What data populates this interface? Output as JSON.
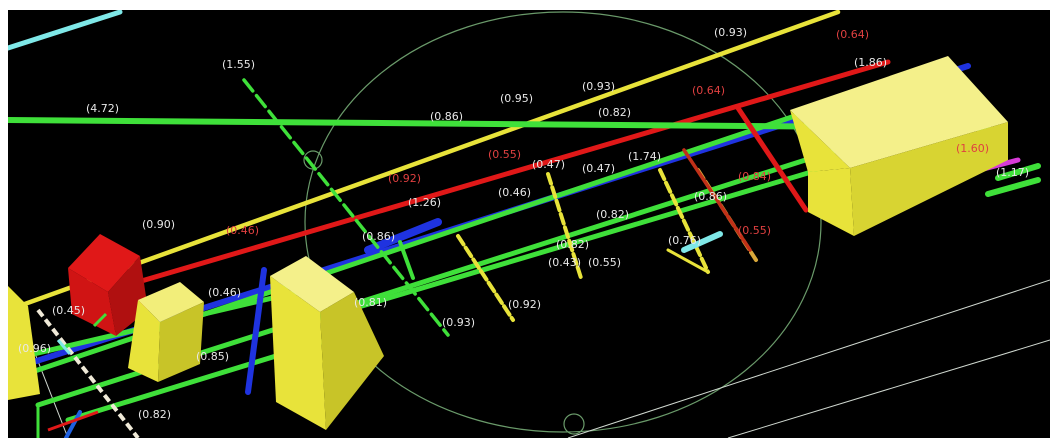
{
  "colors": {
    "background": "#000000",
    "frame": "#ffffff",
    "green": "#3fe03a",
    "yellow": "#e8e33a",
    "red": "#e01818",
    "blue": "#1f33e0",
    "cyan": "#7fe8e8",
    "magenta": "#d83ad8",
    "grid": "#cfd8cf"
  },
  "labels": {
    "l1": "(4.72)",
    "l2": "(1.55)",
    "l3": "(0.90)",
    "l4": "(0.93)",
    "l5": "(0.93)",
    "l6": "(0.86)",
    "l7": "(0.82)",
    "l8": "(0.95)",
    "l9": "(0.64)",
    "l10": "(0.64)",
    "l11": "(0.47)",
    "l12": "(0.47)",
    "l13": "(0.46)",
    "l14": "(0.46)",
    "l15": "(1.26)",
    "l16": "(0.55)",
    "l17": "(0.92)",
    "l18": "(0.82)",
    "l19": "(0.86)",
    "l20": "(0.82)",
    "l21": "(0.43)",
    "l22": "(0.46)",
    "l23": "(0.81)",
    "l24": "(0.85)",
    "l25": "(0.96)",
    "l26": "(0.93)",
    "l27": "(0.92)",
    "l28": "(0.45)",
    "l29": "(0.55)",
    "l30": "(1.74)",
    "l31": "(0.76)",
    "l32": "(0.84)",
    "l33": "(0.86)",
    "l34": "(0.55)",
    "l35": "(1.60)",
    "l36": "(1.17)",
    "l37": "(1.86)",
    "l38": "(0.82)"
  }
}
